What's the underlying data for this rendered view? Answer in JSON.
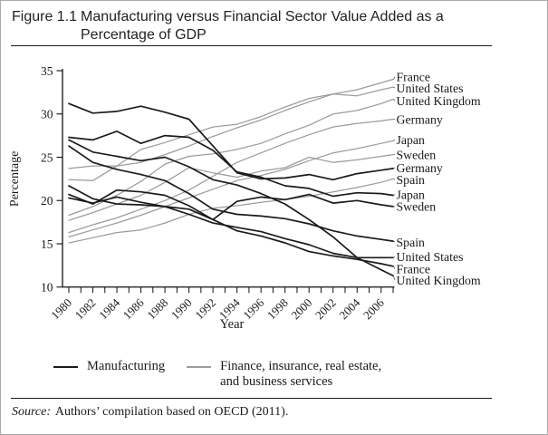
{
  "figure": {
    "label": "Figure 1.1",
    "title_line1": "Manufacturing versus Financial Sector Value Added as a",
    "title_line2": "Percentage of GDP"
  },
  "legend": {
    "manufacturing": {
      "label": "Manufacturing"
    },
    "finance": {
      "line1": "Finance, insurance, real estate,",
      "line2": "and business services"
    }
  },
  "source_note": {
    "prefix": "Source:",
    "text": "Authors’ compilation based on OECD (2011)."
  },
  "chart_data": {
    "type": "line",
    "xlabel": "Year",
    "ylabel": "Percentage",
    "ylim": [
      10,
      35
    ],
    "yticks": [
      10,
      15,
      20,
      25,
      30,
      35
    ],
    "xlim": [
      1980,
      2007
    ],
    "xtick_labels": [
      1980,
      1982,
      1984,
      1986,
      1988,
      1990,
      1992,
      1994,
      1996,
      1998,
      2000,
      2002,
      2004,
      2006
    ],
    "grid": false,
    "legend_position": "bottom",
    "x": [
      1980,
      1982,
      1984,
      1986,
      1988,
      1990,
      1992,
      1994,
      1996,
      1998,
      2000,
      2002,
      2004,
      2006,
      2007
    ],
    "groups": {
      "manufacturing": {
        "color": "#1b1b1b",
        "width": 1.7
      },
      "finance": {
        "color": "#9c9c9c",
        "width": 1.25
      }
    },
    "series": [
      {
        "name": "France",
        "group": "finance",
        "label_at": 34.3,
        "values": [
          23.7,
          24.0,
          24.0,
          24.4,
          25.3,
          26.3,
          27.4,
          28.4,
          29.3,
          30.4,
          31.4,
          32.3,
          32.8,
          33.6,
          34.0
        ]
      },
      {
        "name": "United States",
        "group": "finance",
        "label_at": 33.0,
        "values": [
          22.4,
          22.3,
          24.0,
          25.9,
          26.7,
          27.6,
          28.5,
          28.8,
          29.7,
          30.8,
          31.8,
          32.3,
          32.1,
          32.8,
          33.1
        ]
      },
      {
        "name": "United Kingdom",
        "group": "finance",
        "label_at": 31.5,
        "values": [
          18.3,
          19.3,
          20.6,
          22.2,
          24.2,
          25.1,
          25.4,
          25.9,
          26.6,
          27.7,
          28.7,
          30.0,
          30.4,
          31.2,
          31.7
        ]
      },
      {
        "name": "Germany",
        "group": "finance",
        "label_at": 29.4,
        "values": [
          16.3,
          17.2,
          18.0,
          19.0,
          20.0,
          21.2,
          22.8,
          24.4,
          25.5,
          26.6,
          27.6,
          28.5,
          28.9,
          29.2,
          29.4
        ]
      },
      {
        "name": "Japan",
        "group": "finance",
        "label_at": 27.0,
        "values": [
          15.8,
          16.6,
          17.4,
          18.3,
          19.3,
          20.3,
          21.3,
          22.3,
          22.9,
          23.6,
          24.6,
          25.5,
          26.0,
          26.6,
          26.9
        ]
      },
      {
        "name": "Sweden",
        "group": "finance",
        "label_at": 25.3,
        "values": [
          17.7,
          18.6,
          19.6,
          20.6,
          22.1,
          23.8,
          23.2,
          22.7,
          23.4,
          23.8,
          25.0,
          24.4,
          24.7,
          25.1,
          25.3
        ]
      },
      {
        "name": "Spain",
        "group": "finance",
        "label_at": 22.4,
        "values": [
          15.1,
          15.7,
          16.3,
          16.6,
          17.4,
          18.4,
          19.1,
          19.4,
          19.8,
          20.1,
          20.5,
          21.0,
          21.5,
          22.1,
          22.5
        ]
      },
      {
        "name": "Germany",
        "group": "manufacturing",
        "label_at": 23.8,
        "values": [
          31.2,
          30.1,
          30.3,
          30.9,
          30.2,
          29.4,
          26.3,
          23.2,
          22.5,
          22.6,
          23.0,
          22.4,
          23.1,
          23.5,
          23.7
        ]
      },
      {
        "name": "Japan",
        "group": "manufacturing",
        "label_at": 20.7,
        "values": [
          27.3,
          27.0,
          28.0,
          26.6,
          27.5,
          27.3,
          25.8,
          23.3,
          22.7,
          21.7,
          21.4,
          20.5,
          20.9,
          20.8,
          20.6
        ]
      },
      {
        "name": "United Kingdom",
        "group": "manufacturing",
        "label_at": 10.8,
        "values": [
          27.0,
          25.6,
          25.1,
          24.6,
          25.0,
          23.9,
          22.4,
          21.8,
          20.8,
          19.6,
          17.8,
          15.8,
          13.4,
          12.0,
          11.3
        ]
      },
      {
        "name": "Spain",
        "group": "manufacturing",
        "label_at": 15.2,
        "values": [
          26.3,
          24.4,
          23.6,
          23.0,
          22.3,
          20.8,
          19.0,
          18.4,
          18.2,
          17.9,
          17.3,
          16.5,
          15.9,
          15.5,
          15.3
        ]
      },
      {
        "name": "France",
        "group": "manufacturing",
        "label_at": 12.1,
        "values": [
          21.7,
          20.2,
          19.6,
          19.5,
          19.3,
          19.0,
          17.8,
          16.5,
          15.9,
          15.1,
          14.1,
          13.6,
          13.2,
          12.7,
          12.4
        ]
      },
      {
        "name": "United States",
        "group": "manufacturing",
        "label_at": 13.5,
        "values": [
          20.3,
          19.7,
          20.4,
          19.8,
          19.3,
          18.4,
          17.4,
          16.9,
          16.4,
          15.6,
          14.9,
          13.9,
          13.4,
          13.4,
          13.4
        ]
      },
      {
        "name": "Sweden",
        "group": "manufacturing",
        "label_at": 19.3,
        "values": [
          20.7,
          19.6,
          21.2,
          21.0,
          20.6,
          19.4,
          17.8,
          19.9,
          20.4,
          20.1,
          20.7,
          19.7,
          20.0,
          19.5,
          19.3
        ]
      }
    ]
  }
}
